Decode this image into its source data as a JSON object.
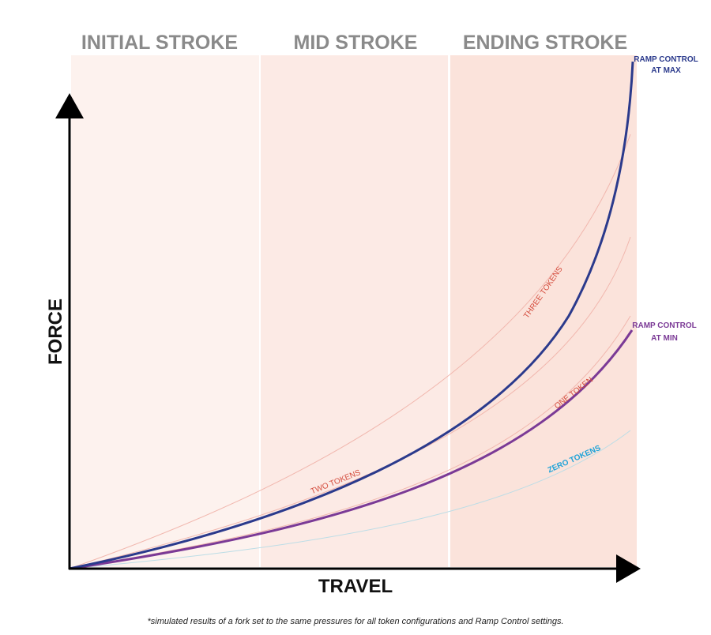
{
  "regions": [
    "INITIAL STROKE",
    "MID STROKE",
    "ENDING STROKE"
  ],
  "axes": {
    "x": "TRAVEL",
    "y": "FORCE"
  },
  "curves": {
    "ramp_max": [
      "RAMP CONTROL",
      "AT MAX"
    ],
    "ramp_min": [
      "RAMP CONTROL",
      "AT MIN"
    ],
    "three_tokens": "THREE TOKENS",
    "two_tokens": "TWO TOKENS",
    "one_token": "ONE TOKEN",
    "zero_tokens": "ZERO TOKENS"
  },
  "footnote": "*simulated results of a fork set to the same pressures for all token configurations and Ramp Control settings."
}
